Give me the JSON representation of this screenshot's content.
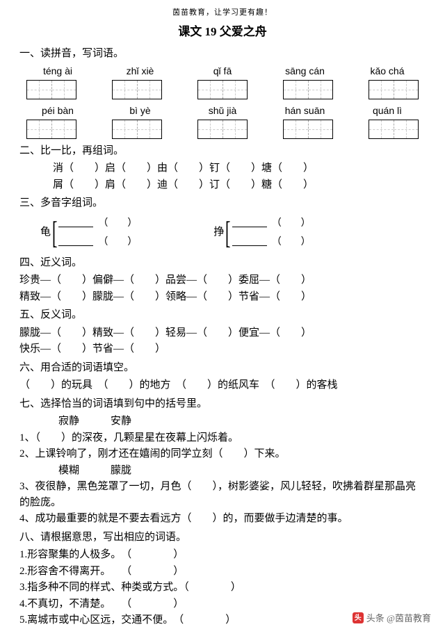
{
  "header_small": "茵苗教育，让学习更有趣！",
  "title": "课文 19  父爱之舟",
  "s1": {
    "head": "一、读拼音，写词语。",
    "row1": [
      "téng  ài",
      "zhǐ xiè",
      "qǐ  fā",
      "sāng  cán",
      "kǎo  chá"
    ],
    "row2": [
      "péi bàn",
      "bì  yè",
      "shǔ  jià",
      "hán suān",
      "quán lì"
    ]
  },
  "s2": {
    "head": "二、比一比，再组词。",
    "l1": "消（　　）启（　　）由（　　）钉（　　）塘（　　）",
    "l2": "屑（　　）肩（　　）迪（　　）订（　　）糖（　　）"
  },
  "s3": {
    "head": "三、多音字组词。",
    "c1": "龟",
    "c2": "挣",
    "blank": "（　　）"
  },
  "s4": {
    "head": "四、近义词。",
    "l1": "珍贵—（　　）偏僻—（　　）品尝—（　　）委屈—（　　）",
    "l2": "精致—（　　）朦胧—（　　）领略—（　　）节省—（　　）"
  },
  "s5": {
    "head": "五、反义词。",
    "l1": "朦胧—（　　）精致—（　　）轻易—（　　）便宜—（　　）",
    "l2": "快乐—（　　）节省—（　　）"
  },
  "s6": {
    "head": "六、用合适的词语填空。",
    "l1": "（　　）的玩具　（　　）的地方　（　　）的纸风车　（　　）的客栈"
  },
  "s7": {
    "head": "七、选择恰当的词语填到句中的括号里。",
    "pair1": "寂静　　　安静",
    "l1": "1、（　　）的深夜，几颗星星在夜幕上闪烁着。",
    "l2": "2、上课铃响了，刚才还在嬉闹的同学立刻（　　）下来。",
    "pair2": "模糊　　　朦胧",
    "l3": "3、夜很静，黑色笼罩了一切，月色（　　），树影婆娑，风儿轻轻，吹拂着群星那晶亮的脸庞。",
    "l4": "4、成功最重要的就是不要去看远方（　　）的，而要做手边清楚的事。"
  },
  "s8": {
    "head": "八、请根据意思，写出相应的词语。",
    "l1": "1.形容聚集的人极多。　（　　　　）",
    "l2": "2.形容舍不得离开。　　（　　　　）",
    "l3": "3.指多种不同的样式、种类或方式。（　　　　）",
    "l4": "4.不真切，不清楚。　　（　　　　）",
    "l5": "5.离城市或中心区远，交通不便。　（　　　　）"
  },
  "footer": "头条 @茵苗教育",
  "footer_icon": "头"
}
